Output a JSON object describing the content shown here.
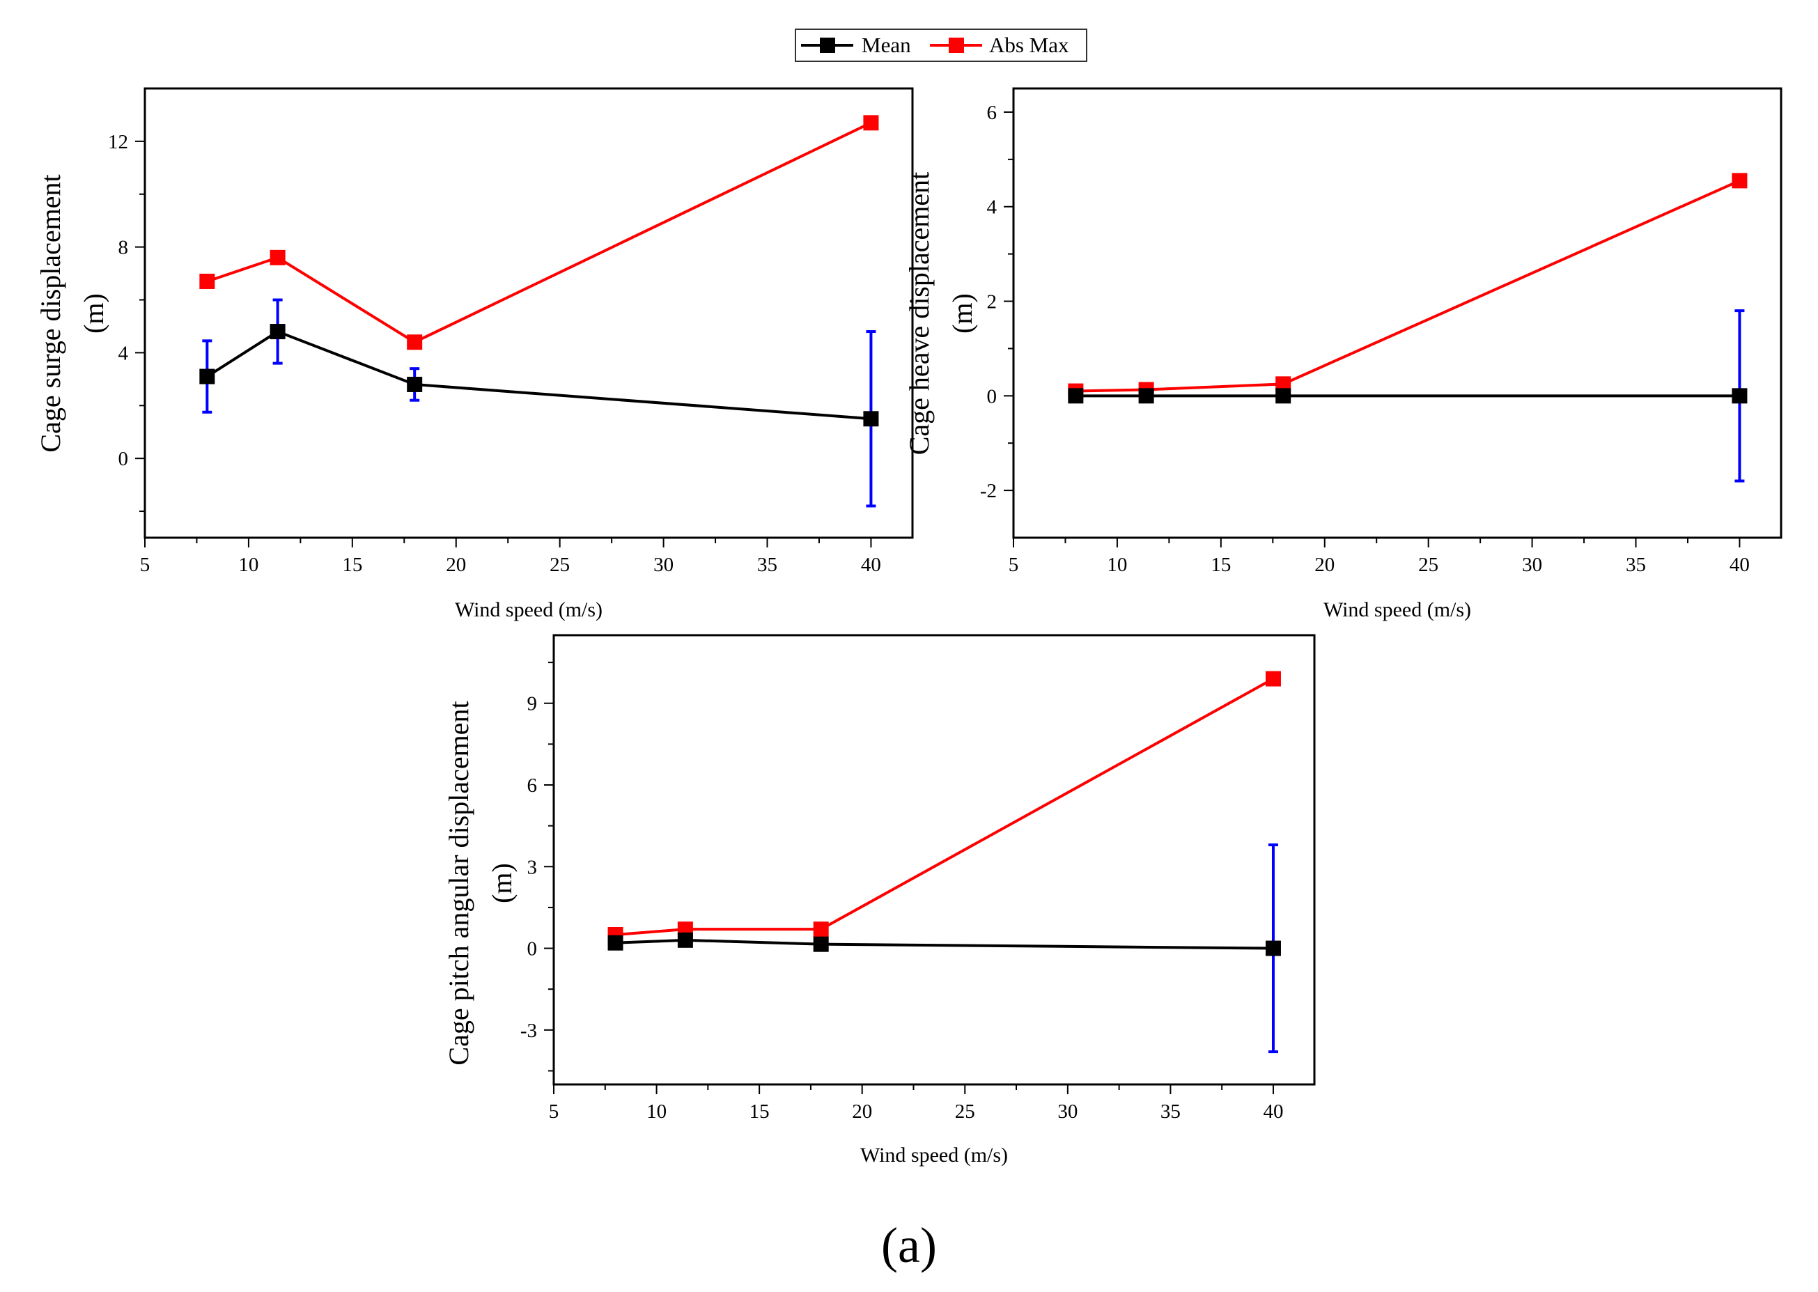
{
  "legend": {
    "items": [
      {
        "label": "Mean",
        "color": "#000000"
      },
      {
        "label": "Abs Max",
        "color": "#ff0000"
      }
    ]
  },
  "panel_label": "(a)",
  "colors": {
    "mean": "#000000",
    "absmax": "#ff0000",
    "errorbar": "#0000ff"
  },
  "chart_data": [
    {
      "id": "surge",
      "type": "line",
      "title": "",
      "xlabel": "Wind speed (m/s)",
      "ylabel_lines": [
        "Cage surge displacement",
        "(m)"
      ],
      "xlim": [
        5,
        42
      ],
      "ylim": [
        -3,
        14
      ],
      "xticks": [
        5,
        10,
        15,
        20,
        25,
        30,
        35,
        40
      ],
      "yticks": [
        0,
        4,
        8,
        12
      ],
      "x": [
        8,
        11.4,
        18,
        40
      ],
      "series": [
        {
          "name": "Mean",
          "color": "#000000",
          "values": [
            3.1,
            4.8,
            2.8,
            1.5
          ],
          "error": [
            1.35,
            1.2,
            0.6,
            3.3
          ]
        },
        {
          "name": "Abs Max",
          "color": "#ff0000",
          "values": [
            6.7,
            7.6,
            4.4,
            12.7
          ]
        }
      ]
    },
    {
      "id": "heave",
      "type": "line",
      "title": "",
      "xlabel": "Wind speed (m/s)",
      "ylabel_lines": [
        "Cage heave displacement",
        "(m)"
      ],
      "xlim": [
        5,
        42
      ],
      "ylim": [
        -3,
        6.5
      ],
      "xticks": [
        5,
        10,
        15,
        20,
        25,
        30,
        35,
        40
      ],
      "yticks": [
        -2,
        0,
        2,
        4,
        6
      ],
      "x": [
        8,
        11.4,
        18,
        40
      ],
      "series": [
        {
          "name": "Mean",
          "color": "#000000",
          "values": [
            0,
            0,
            0,
            0
          ],
          "error": [
            0.05,
            0.05,
            0.05,
            1.8
          ]
        },
        {
          "name": "Abs Max",
          "color": "#ff0000",
          "values": [
            0.1,
            0.13,
            0.25,
            4.55
          ]
        }
      ]
    },
    {
      "id": "pitch",
      "type": "line",
      "title": "",
      "xlabel": "Wind speed (m/s)",
      "ylabel_lines": [
        "Cage pitch angular displacement",
        "(m)"
      ],
      "xlim": [
        5,
        42
      ],
      "ylim": [
        -5,
        11.5
      ],
      "xticks": [
        5,
        10,
        15,
        20,
        25,
        30,
        35,
        40
      ],
      "yticks": [
        -3,
        0,
        3,
        6,
        9
      ],
      "x": [
        8,
        11.4,
        18,
        40
      ],
      "series": [
        {
          "name": "Mean",
          "color": "#000000",
          "values": [
            0.2,
            0.3,
            0.15,
            0.0
          ],
          "error": [
            0.1,
            0.1,
            0.1,
            3.8
          ]
        },
        {
          "name": "Abs Max",
          "color": "#ff0000",
          "values": [
            0.5,
            0.7,
            0.7,
            9.9
          ]
        }
      ]
    }
  ]
}
